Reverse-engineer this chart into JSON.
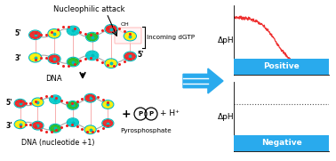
{
  "bg_color": "#ffffff",
  "arrow_color": "#29aaed",
  "sigmoid_color": "#ee3333",
  "dotted_color": "#555555",
  "box_positive_color": "#29aaed",
  "box_negative_color": "#29aaed",
  "positive_label": "Positive",
  "negative_label": "Negative",
  "ylabel": "ΔpH",
  "title_top": "Nucleophilic attack",
  "label_incoming": "Incoming dGTP",
  "label_dna_top": "DNA",
  "label_dna_bottom": "DNA (nucleotide +1)",
  "label_pyro": "Pyrosphosphate",
  "label_hplus": "+ H⁺",
  "label_5prime_top_left": "5'",
  "label_3prime_top_left": "3'",
  "label_5prime_top_right": "5'",
  "label_5prime_bot_left": "5'",
  "label_3prime_bot_left": "3'",
  "blob_colors_a": [
    "#ee2222",
    "#ffee00",
    "#00cccc",
    "#22bb22",
    "#ee2222",
    "#ffee00",
    "#00cccc"
  ],
  "blob_colors_b": [
    "#ffee00",
    "#ee2222",
    "#22bb22",
    "#00cccc",
    "#ffee00",
    "#ee2222",
    "#22bb22"
  ],
  "backbone_color": "#aaaaaa",
  "rung_color": "#ee4444",
  "dot_color": "#ee2222",
  "cyan_ring": "#00bbbb"
}
